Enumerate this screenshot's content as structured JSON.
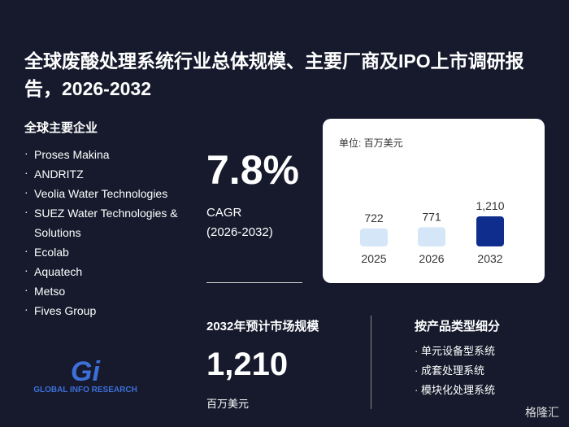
{
  "header": {
    "title": "全球废酸处理系统行业总体规模、主要厂商及IPO上市调研报告，2026-2032"
  },
  "companies": {
    "heading": "全球主要企业",
    "items": [
      "Proses Makina",
      "ANDRITZ",
      "Veolia Water Technologies",
      "SUEZ Water Technologies & Solutions",
      "Ecolab",
      "Aquatech",
      "Metso",
      "Fives Group"
    ]
  },
  "cagr": {
    "value": "7.8%",
    "label": "CAGR",
    "period": "(2026-2032)"
  },
  "chart": {
    "type": "bar",
    "unit": "单位: 百万美元",
    "categories": [
      "2025",
      "2026",
      "2032"
    ],
    "values": [
      722,
      771,
      1210
    ],
    "value_labels": [
      "722",
      "771",
      "1,210"
    ],
    "colors": [
      "#d5e6f8",
      "#d5e6f8",
      "#0f2d8c"
    ]
  },
  "market": {
    "heading": "2032年预计市场规模",
    "value": "1,210",
    "unit": "百万美元"
  },
  "segments": {
    "heading": "按产品类型细分",
    "items": [
      "单元设备型系统",
      "成套处理系统",
      "模块化处理系统"
    ]
  },
  "logo": {
    "mark": "Gi",
    "text": "GLOBAL INFO RESEARCH"
  },
  "watermark": "格隆汇"
}
